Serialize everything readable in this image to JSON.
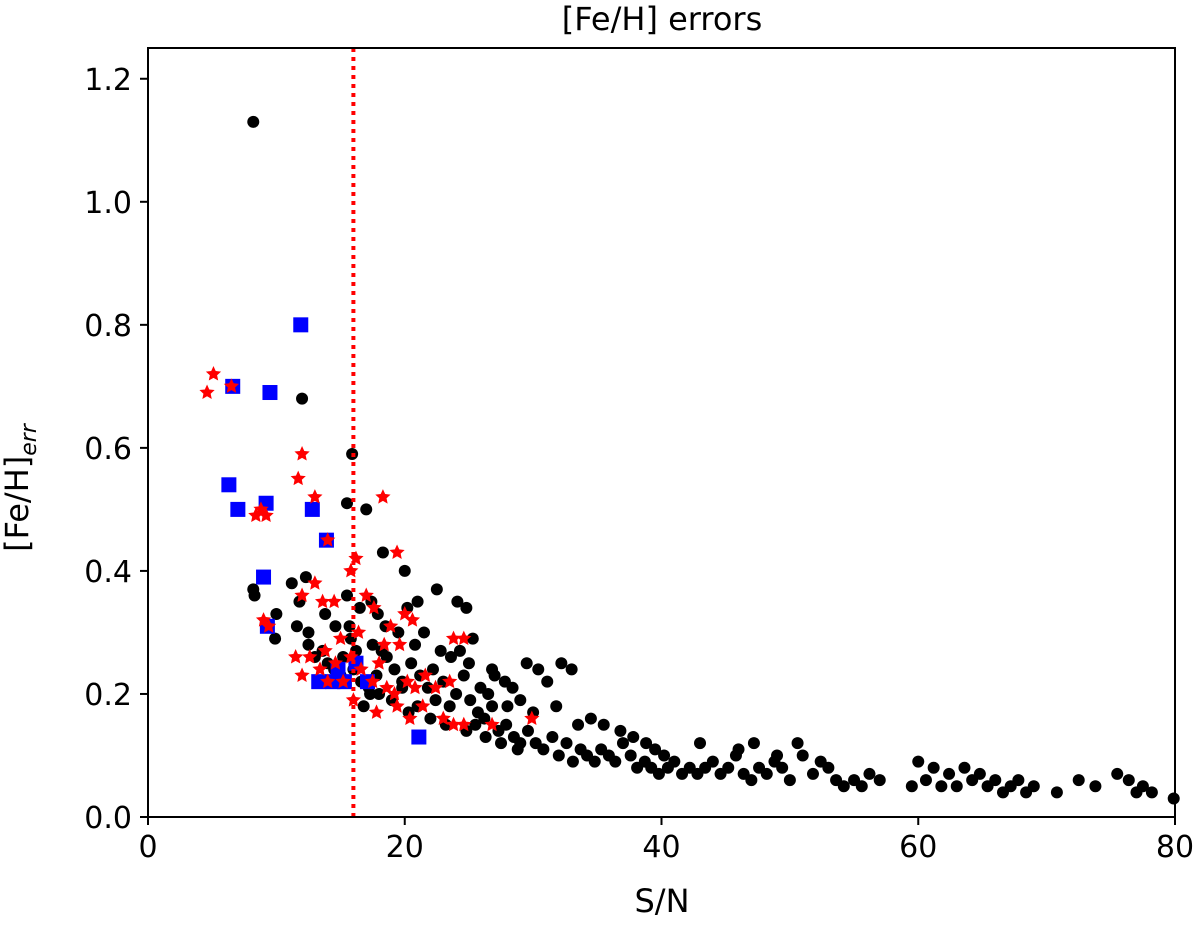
{
  "chart_data": {
    "type": "scatter",
    "title": "[Fe/H] errors",
    "xlabel": "S/N",
    "ylabel_main": "[Fe/H]",
    "ylabel_sub": "err",
    "xlim": [
      0,
      80
    ],
    "ylim": [
      0,
      1.25
    ],
    "xticks": [
      0,
      20,
      40,
      60,
      80
    ],
    "yticks": [
      0.0,
      0.2,
      0.4,
      0.6,
      0.8,
      1.0,
      1.2
    ],
    "ytick_labels": [
      "0.0",
      "0.2",
      "0.4",
      "0.6",
      "0.8",
      "1.0",
      "1.2"
    ],
    "grid": false,
    "vline": {
      "x": 16,
      "color": "#ff0000",
      "style": "dotted"
    },
    "colors": {
      "black_series": "#000000",
      "red_series": "#ff0000",
      "blue_series": "#0000ff"
    },
    "series": [
      {
        "marker": "circle",
        "color": "#000000",
        "points": [
          [
            8.2,
            1.13
          ],
          [
            12.0,
            0.68
          ],
          [
            15.9,
            0.59
          ],
          [
            15.5,
            0.51
          ],
          [
            17.0,
            0.5
          ],
          [
            18.3,
            0.43
          ],
          [
            20.0,
            0.4
          ],
          [
            8.2,
            0.37
          ],
          [
            8.3,
            0.36
          ],
          [
            11.2,
            0.38
          ],
          [
            12.3,
            0.39
          ],
          [
            10.0,
            0.33
          ],
          [
            9.9,
            0.29
          ],
          [
            11.8,
            0.35
          ],
          [
            11.6,
            0.31
          ],
          [
            12.5,
            0.3
          ],
          [
            13.8,
            0.33
          ],
          [
            14.6,
            0.31
          ],
          [
            15.5,
            0.36
          ],
          [
            15.7,
            0.31
          ],
          [
            16.5,
            0.34
          ],
          [
            17.4,
            0.35
          ],
          [
            17.9,
            0.33
          ],
          [
            18.5,
            0.31
          ],
          [
            20.2,
            0.34
          ],
          [
            21.0,
            0.35
          ],
          [
            22.5,
            0.37
          ],
          [
            24.1,
            0.35
          ],
          [
            24.8,
            0.34
          ],
          [
            25.3,
            0.29
          ],
          [
            26.8,
            0.24
          ],
          [
            27.8,
            0.22
          ],
          [
            28.4,
            0.21
          ],
          [
            29.5,
            0.25
          ],
          [
            30.4,
            0.24
          ],
          [
            31.1,
            0.22
          ],
          [
            32.2,
            0.25
          ],
          [
            33.0,
            0.24
          ],
          [
            12.5,
            0.28
          ],
          [
            13.0,
            0.26
          ],
          [
            13.6,
            0.27
          ],
          [
            14.0,
            0.25
          ],
          [
            14.5,
            0.24
          ],
          [
            15.0,
            0.23
          ],
          [
            15.2,
            0.26
          ],
          [
            16.0,
            0.24
          ],
          [
            16.6,
            0.22
          ],
          [
            17.2,
            0.21
          ],
          [
            17.8,
            0.23
          ],
          [
            18.6,
            0.26
          ],
          [
            19.2,
            0.24
          ],
          [
            19.8,
            0.22
          ],
          [
            20.5,
            0.25
          ],
          [
            21.2,
            0.23
          ],
          [
            21.8,
            0.21
          ],
          [
            22.4,
            0.19
          ],
          [
            23.0,
            0.22
          ],
          [
            23.5,
            0.18
          ],
          [
            24.0,
            0.2
          ],
          [
            24.6,
            0.23
          ],
          [
            25.1,
            0.19
          ],
          [
            25.7,
            0.17
          ],
          [
            26.2,
            0.16
          ],
          [
            26.8,
            0.18
          ],
          [
            27.3,
            0.14
          ],
          [
            27.9,
            0.15
          ],
          [
            28.5,
            0.13
          ],
          [
            29.0,
            0.12
          ],
          [
            29.6,
            0.14
          ],
          [
            30.2,
            0.12
          ],
          [
            30.8,
            0.11
          ],
          [
            31.5,
            0.13
          ],
          [
            32.0,
            0.1
          ],
          [
            32.6,
            0.12
          ],
          [
            33.1,
            0.09
          ],
          [
            33.7,
            0.11
          ],
          [
            34.2,
            0.1
          ],
          [
            34.8,
            0.09
          ],
          [
            35.3,
            0.11
          ],
          [
            35.9,
            0.1
          ],
          [
            36.4,
            0.09
          ],
          [
            37.0,
            0.12
          ],
          [
            37.6,
            0.1
          ],
          [
            38.1,
            0.08
          ],
          [
            38.7,
            0.09
          ],
          [
            39.2,
            0.08
          ],
          [
            39.8,
            0.07
          ],
          [
            40.5,
            0.08
          ],
          [
            41.0,
            0.09
          ],
          [
            41.6,
            0.07
          ],
          [
            42.2,
            0.08
          ],
          [
            42.8,
            0.07
          ],
          [
            43.4,
            0.08
          ],
          [
            44.0,
            0.09
          ],
          [
            44.6,
            0.07
          ],
          [
            45.2,
            0.08
          ],
          [
            45.8,
            0.1
          ],
          [
            46.4,
            0.07
          ],
          [
            47.0,
            0.06
          ],
          [
            47.6,
            0.08
          ],
          [
            48.2,
            0.07
          ],
          [
            48.8,
            0.09
          ],
          [
            49.4,
            0.08
          ],
          [
            50.0,
            0.06
          ],
          [
            50.6,
            0.12
          ],
          [
            51.0,
            0.1
          ],
          [
            51.8,
            0.07
          ],
          [
            52.4,
            0.09
          ],
          [
            53.0,
            0.08
          ],
          [
            53.6,
            0.06
          ],
          [
            54.2,
            0.05
          ],
          [
            55.0,
            0.06
          ],
          [
            55.6,
            0.05
          ],
          [
            56.2,
            0.07
          ],
          [
            57.0,
            0.06
          ],
          [
            59.5,
            0.05
          ],
          [
            60.0,
            0.09
          ],
          [
            60.6,
            0.06
          ],
          [
            61.2,
            0.08
          ],
          [
            61.8,
            0.05
          ],
          [
            62.4,
            0.07
          ],
          [
            63.0,
            0.05
          ],
          [
            63.6,
            0.08
          ],
          [
            64.2,
            0.06
          ],
          [
            64.8,
            0.07
          ],
          [
            65.4,
            0.05
          ],
          [
            66.0,
            0.06
          ],
          [
            66.6,
            0.04
          ],
          [
            67.2,
            0.05
          ],
          [
            67.8,
            0.06
          ],
          [
            68.4,
            0.04
          ],
          [
            69.0,
            0.05
          ],
          [
            70.8,
            0.04
          ],
          [
            72.5,
            0.06
          ],
          [
            73.8,
            0.05
          ],
          [
            75.5,
            0.07
          ],
          [
            76.4,
            0.06
          ],
          [
            77.0,
            0.04
          ],
          [
            77.5,
            0.05
          ],
          [
            78.2,
            0.04
          ],
          [
            79.9,
            0.03
          ],
          [
            15.8,
            0.29
          ],
          [
            16.2,
            0.27
          ],
          [
            17.5,
            0.28
          ],
          [
            18.2,
            0.27
          ],
          [
            19.5,
            0.3
          ],
          [
            20.8,
            0.28
          ],
          [
            21.5,
            0.3
          ],
          [
            22.8,
            0.27
          ],
          [
            23.6,
            0.26
          ],
          [
            24.3,
            0.27
          ],
          [
            25.9,
            0.21
          ],
          [
            26.5,
            0.2
          ],
          [
            28.0,
            0.18
          ],
          [
            29.0,
            0.19
          ],
          [
            30.0,
            0.17
          ],
          [
            31.8,
            0.18
          ],
          [
            33.5,
            0.15
          ],
          [
            34.5,
            0.16
          ],
          [
            35.5,
            0.15
          ],
          [
            36.8,
            0.14
          ],
          [
            37.8,
            0.13
          ],
          [
            38.8,
            0.12
          ],
          [
            39.5,
            0.11
          ],
          [
            40.2,
            0.1
          ],
          [
            43.0,
            0.12
          ],
          [
            46.0,
            0.11
          ],
          [
            47.2,
            0.12
          ],
          [
            49.0,
            0.1
          ],
          [
            18.0,
            0.2
          ],
          [
            19.0,
            0.19
          ],
          [
            20.3,
            0.17
          ],
          [
            21.0,
            0.18
          ],
          [
            22.0,
            0.16
          ],
          [
            23.2,
            0.15
          ],
          [
            24.8,
            0.14
          ],
          [
            25.5,
            0.15
          ],
          [
            26.3,
            0.13
          ],
          [
            27.5,
            0.12
          ],
          [
            28.8,
            0.11
          ],
          [
            16.8,
            0.18
          ],
          [
            17.3,
            0.2
          ],
          [
            19.8,
            0.21
          ],
          [
            22.2,
            0.24
          ],
          [
            25.0,
            0.25
          ],
          [
            27.0,
            0.23
          ]
        ]
      },
      {
        "marker": "star",
        "color": "#ff0000",
        "points": [
          [
            4.6,
            0.69
          ],
          [
            5.1,
            0.72
          ],
          [
            6.5,
            0.7
          ],
          [
            8.4,
            0.49
          ],
          [
            8.8,
            0.5
          ],
          [
            9.2,
            0.49
          ],
          [
            12.0,
            0.59
          ],
          [
            11.7,
            0.55
          ],
          [
            13.0,
            0.52
          ],
          [
            18.3,
            0.52
          ],
          [
            19.4,
            0.43
          ],
          [
            15.8,
            0.4
          ],
          [
            16.2,
            0.42
          ],
          [
            14.0,
            0.45
          ],
          [
            12.0,
            0.36
          ],
          [
            13.0,
            0.38
          ],
          [
            13.6,
            0.35
          ],
          [
            14.5,
            0.35
          ],
          [
            16.4,
            0.3
          ],
          [
            17.0,
            0.36
          ],
          [
            17.6,
            0.34
          ],
          [
            18.9,
            0.31
          ],
          [
            19.6,
            0.28
          ],
          [
            20.0,
            0.33
          ],
          [
            20.6,
            0.32
          ],
          [
            23.8,
            0.29
          ],
          [
            24.6,
            0.29
          ],
          [
            9.0,
            0.32
          ],
          [
            9.4,
            0.31
          ],
          [
            11.5,
            0.26
          ],
          [
            12.0,
            0.23
          ],
          [
            12.6,
            0.26
          ],
          [
            13.4,
            0.24
          ],
          [
            14.0,
            0.22
          ],
          [
            14.6,
            0.25
          ],
          [
            15.2,
            0.22
          ],
          [
            15.8,
            0.26
          ],
          [
            16.6,
            0.24
          ],
          [
            17.5,
            0.22
          ],
          [
            18.0,
            0.25
          ],
          [
            18.6,
            0.21
          ],
          [
            19.2,
            0.2
          ],
          [
            20.2,
            0.22
          ],
          [
            20.8,
            0.21
          ],
          [
            21.4,
            0.18
          ],
          [
            22.4,
            0.21
          ],
          [
            23.0,
            0.16
          ],
          [
            23.8,
            0.15
          ],
          [
            24.6,
            0.15
          ],
          [
            26.8,
            0.15
          ],
          [
            29.9,
            0.16
          ],
          [
            19.4,
            0.18
          ],
          [
            20.4,
            0.16
          ],
          [
            17.8,
            0.17
          ],
          [
            16.0,
            0.19
          ],
          [
            13.8,
            0.27
          ],
          [
            15.0,
            0.29
          ],
          [
            18.4,
            0.28
          ],
          [
            21.6,
            0.23
          ],
          [
            23.5,
            0.22
          ]
        ]
      },
      {
        "marker": "square",
        "color": "#0000ff",
        "points": [
          [
            11.9,
            0.8
          ],
          [
            9.5,
            0.69
          ],
          [
            6.6,
            0.7
          ],
          [
            6.3,
            0.54
          ],
          [
            7.0,
            0.5
          ],
          [
            9.2,
            0.51
          ],
          [
            12.8,
            0.5
          ],
          [
            13.9,
            0.45
          ],
          [
            9.0,
            0.39
          ],
          [
            9.3,
            0.31
          ],
          [
            13.3,
            0.22
          ],
          [
            14.4,
            0.22
          ],
          [
            14.8,
            0.24
          ],
          [
            15.3,
            0.22
          ],
          [
            16.2,
            0.25
          ],
          [
            17.1,
            0.22
          ],
          [
            21.1,
            0.13
          ]
        ]
      }
    ]
  }
}
